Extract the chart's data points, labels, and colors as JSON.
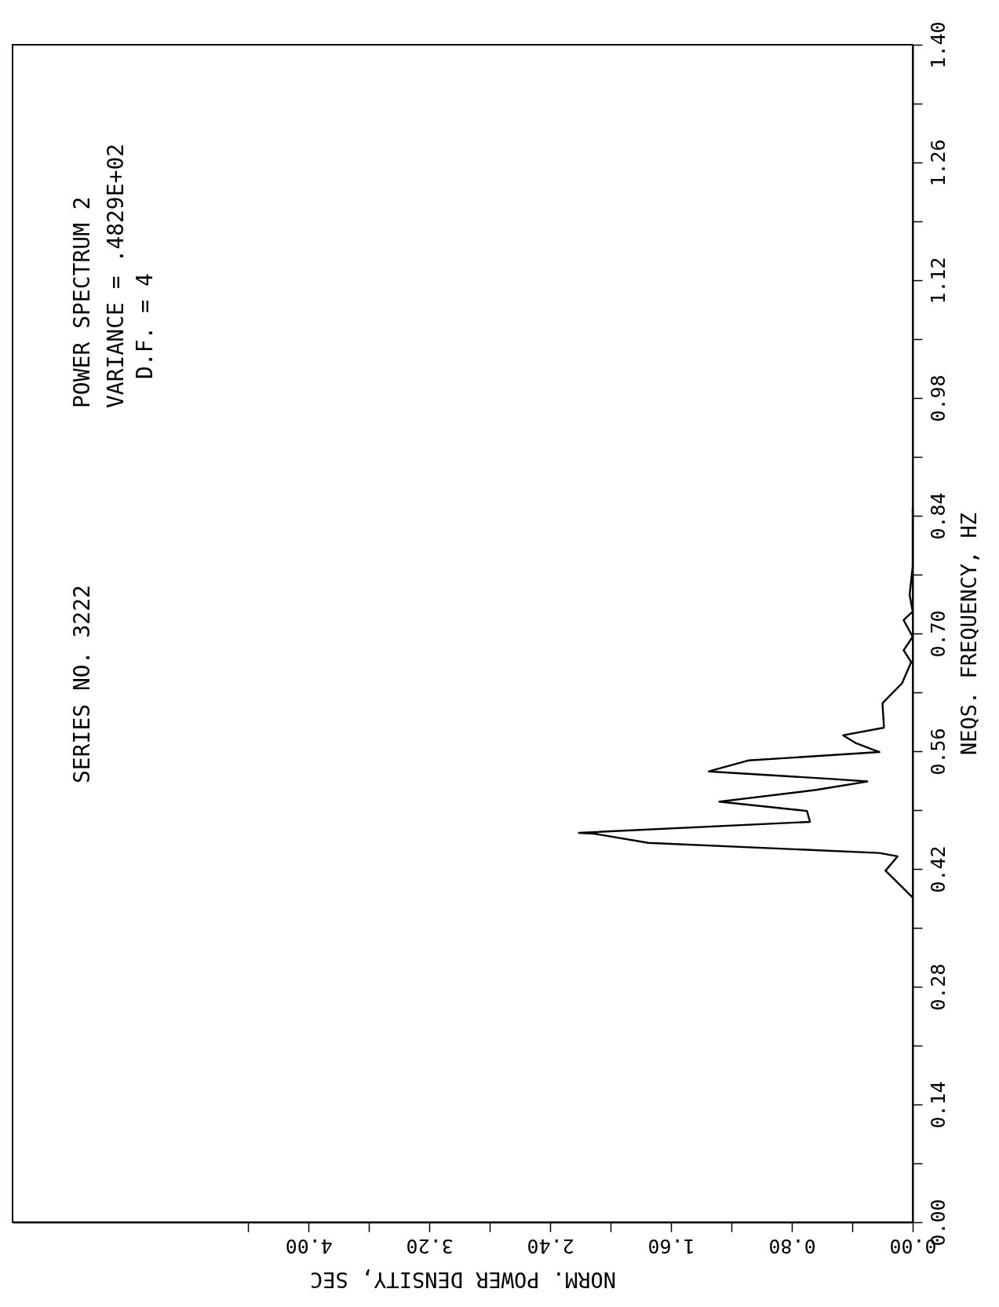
{
  "chart_data": {
    "type": "line",
    "xlabel": "NORM. POWER DENSITY, SEC",
    "ylabel": "NEQS. FREQUENCY, HZ",
    "annotations": [
      "SERIES NO. 3222",
      "POWER SPECTRUM 2",
      "VARIANCE = .4829E+02",
      "D.F. = 4"
    ],
    "xlim": [
      5.96,
      0
    ],
    "ylim": [
      0,
      1.4
    ],
    "yticks": [
      {
        "value": 0,
        "label": "0.00"
      },
      {
        "value": 0.07,
        "label": null
      },
      {
        "value": 0.14,
        "label": "0.14"
      },
      {
        "value": 0.21,
        "label": null
      },
      {
        "value": 0.28,
        "label": "0.28"
      },
      {
        "value": 0.35,
        "label": null
      },
      {
        "value": 0.42,
        "label": "0.42"
      },
      {
        "value": 0.49,
        "label": null
      },
      {
        "value": 0.56,
        "label": "0.56"
      },
      {
        "value": 0.63,
        "label": null
      },
      {
        "value": 0.7,
        "label": "0.70"
      },
      {
        "value": 0.77,
        "label": null
      },
      {
        "value": 0.84,
        "label": "0.84"
      },
      {
        "value": 0.91,
        "label": null
      },
      {
        "value": 0.98,
        "label": "0.98"
      },
      {
        "value": 1.05,
        "label": null
      },
      {
        "value": 1.12,
        "label": "1.12"
      },
      {
        "value": 1.19,
        "label": null
      },
      {
        "value": 1.26,
        "label": "1.26"
      },
      {
        "value": 1.33,
        "label": null
      },
      {
        "value": 1.4,
        "label": "1.40"
      }
    ],
    "xticks": [
      {
        "value": 0,
        "label": "0.00"
      },
      {
        "value": 0.4,
        "label": null
      },
      {
        "value": 0.8,
        "label": "0.80"
      },
      {
        "value": 1.2,
        "label": null
      },
      {
        "value": 1.6,
        "label": "1.60"
      },
      {
        "value": 2.0,
        "label": null
      },
      {
        "value": 2.4,
        "label": "2.40"
      },
      {
        "value": 2.8,
        "label": null
      },
      {
        "value": 3.2,
        "label": "3.20"
      },
      {
        "value": 3.6,
        "label": null
      },
      {
        "value": 4.0,
        "label": "4.00"
      },
      {
        "value": 4.4,
        "label": null
      }
    ],
    "grid": false,
    "line_style": "solid",
    "marker": "none",
    "series": [
      {
        "color": "#000000",
        "x": [
          0,
          0.18,
          0.1,
          0.22,
          1.75,
          2.11,
          2.21,
          0.68,
          0.7,
          1.28,
          0.64,
          0.3,
          0.53,
          1.35,
          1.09,
          0.22,
          0.38,
          0.46,
          0.19,
          0.2,
          0.07,
          0.01,
          0.06,
          0,
          0.06,
          0,
          0.02,
          0,
          0
        ],
        "values": [
          0.386,
          0.418,
          0.435,
          0.439,
          0.451,
          0.462,
          0.463,
          0.476,
          0.489,
          0.5,
          0.514,
          0.524,
          0.527,
          0.536,
          0.549,
          0.559,
          0.57,
          0.579,
          0.588,
          0.617,
          0.641,
          0.666,
          0.68,
          0.696,
          0.716,
          0.726,
          0.746,
          0.78,
          0.85
        ]
      }
    ]
  }
}
